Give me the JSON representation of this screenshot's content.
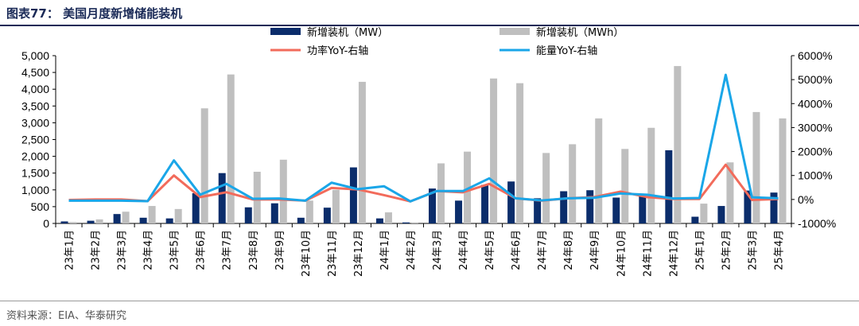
{
  "title": "图表77：  美国月度新增储能装机",
  "source": "资料来源：EIA、华泰研究",
  "chart_data": {
    "type": "bar",
    "categories": [
      "23年1月",
      "23年2月",
      "23年3月",
      "23年4月",
      "23年5月",
      "23年6月",
      "23年7月",
      "23年8月",
      "23年9月",
      "23年10月",
      "23年11月",
      "23年12月",
      "24年1月",
      "24年2月",
      "24年3月",
      "24年4月",
      "24年5月",
      "24年6月",
      "24年7月",
      "24年8月",
      "24年9月",
      "24年10月",
      "24年11月",
      "24年12月",
      "25年1月",
      "25年2月",
      "25年3月",
      "25年4月"
    ],
    "left_axis": {
      "ylim": [
        0,
        5000
      ],
      "ticks": [
        "0",
        "500",
        "1,000",
        "1,500",
        "2,000",
        "2,500",
        "3,000",
        "3,500",
        "4,000",
        "4,500",
        "5,000"
      ]
    },
    "right_axis": {
      "ylim": [
        -1000,
        6000
      ],
      "ticks": [
        "-1000%",
        "0%",
        "1000%",
        "2000%",
        "3000%",
        "4000%",
        "5000%",
        "6000%"
      ]
    },
    "series": [
      {
        "name": "新增装机（MW）",
        "type": "bar",
        "axis": "left",
        "color": "#0b2d6b",
        "values": [
          60,
          80,
          280,
          170,
          150,
          900,
          1500,
          480,
          600,
          170,
          470,
          1670,
          150,
          30,
          1040,
          680,
          1150,
          1250,
          750,
          960,
          990,
          770,
          830,
          2180,
          200,
          520,
          980,
          920
        ]
      },
      {
        "name": "新增装机（MWh）",
        "type": "bar",
        "axis": "left",
        "color": "#bfbfbf",
        "values": [
          40,
          120,
          350,
          520,
          430,
          3430,
          4440,
          1540,
          1900,
          680,
          1000,
          4220,
          330,
          30,
          1790,
          2140,
          4320,
          4180,
          2100,
          2360,
          3130,
          2220,
          2850,
          4690,
          590,
          1820,
          3320,
          3130
        ]
      },
      {
        "name": "功率YoY-右轴",
        "type": "line",
        "axis": "right",
        "color": "#f26b5b",
        "values": [
          -20,
          0,
          0,
          -70,
          1000,
          100,
          300,
          0,
          0,
          -50,
          480,
          420,
          180,
          -80,
          350,
          300,
          650,
          50,
          -50,
          50,
          100,
          330,
          100,
          20,
          20,
          1450,
          -20,
          20
        ]
      },
      {
        "name": "能量YoY-右轴",
        "type": "line",
        "axis": "right",
        "color": "#1aa6e8",
        "values": [
          -50,
          -50,
          -50,
          -70,
          1630,
          200,
          650,
          30,
          40,
          -50,
          700,
          430,
          550,
          -80,
          350,
          350,
          880,
          50,
          -40,
          50,
          70,
          250,
          200,
          40,
          60,
          5200,
          90,
          50
        ]
      }
    ],
    "legend": "top, two columns"
  }
}
